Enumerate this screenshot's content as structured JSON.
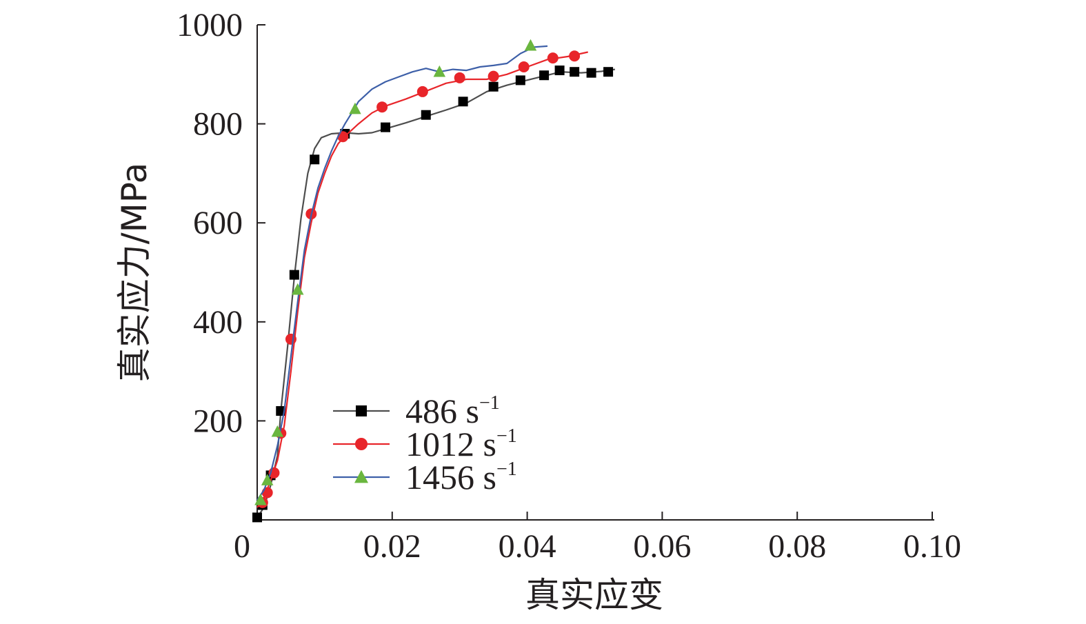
{
  "chart_data": {
    "type": "line",
    "title": "",
    "xlabel": "真实应变",
    "ylabel": "真实应力/MPa",
    "xlim": [
      0,
      0.1
    ],
    "ylim": [
      0,
      1000
    ],
    "xticks": [
      0,
      0.02,
      0.04,
      0.06,
      0.08,
      0.1
    ],
    "xtick_labels": [
      "0",
      "0.02",
      "0.04",
      "0.06",
      "0.08",
      "0.10"
    ],
    "yticks": [
      200,
      400,
      600,
      800,
      1000
    ],
    "ytick_labels": [
      "200",
      "400",
      "600",
      "800",
      "1000"
    ],
    "grid": false,
    "legend_position": "lower-left inside",
    "series": [
      {
        "name": "486 s",
        "sup": "−1",
        "color": "#4d4d4d",
        "marker": "square",
        "marker_color": "#000000",
        "line": [
          [
            0,
            5
          ],
          [
            0.001,
            25
          ],
          [
            0.002,
            70
          ],
          [
            0.003,
            130
          ],
          [
            0.0035,
            220
          ],
          [
            0.0045,
            350
          ],
          [
            0.0055,
            490
          ],
          [
            0.0065,
            610
          ],
          [
            0.0075,
            700
          ],
          [
            0.0085,
            750
          ],
          [
            0.0095,
            772
          ],
          [
            0.011,
            780
          ],
          [
            0.013,
            782
          ],
          [
            0.015,
            780
          ],
          [
            0.017,
            782
          ],
          [
            0.019,
            790
          ],
          [
            0.022,
            802
          ],
          [
            0.025,
            815
          ],
          [
            0.028,
            828
          ],
          [
            0.031,
            842
          ],
          [
            0.034,
            865
          ],
          [
            0.037,
            878
          ],
          [
            0.039,
            885
          ],
          [
            0.042,
            895
          ],
          [
            0.045,
            905
          ],
          [
            0.048,
            903
          ],
          [
            0.051,
            906
          ],
          [
            0.053,
            910
          ]
        ],
        "markers": [
          [
            0,
            5
          ],
          [
            0.0008,
            30
          ],
          [
            0.002,
            90
          ],
          [
            0.0035,
            220
          ],
          [
            0.0055,
            495
          ],
          [
            0.0085,
            728
          ],
          [
            0.013,
            780
          ],
          [
            0.019,
            793
          ],
          [
            0.025,
            818
          ],
          [
            0.0305,
            845
          ],
          [
            0.035,
            875
          ],
          [
            0.039,
            888
          ],
          [
            0.0425,
            898
          ],
          [
            0.0448,
            908
          ],
          [
            0.047,
            905
          ],
          [
            0.0495,
            903
          ],
          [
            0.052,
            905
          ]
        ]
      },
      {
        "name": "1012 s",
        "sup": "−1",
        "color": "#e8252a",
        "marker": "circle",
        "marker_color": "#e8252a",
        "line": [
          [
            0,
            25
          ],
          [
            0.001,
            45
          ],
          [
            0.002,
            80
          ],
          [
            0.003,
            120
          ],
          [
            0.004,
            190
          ],
          [
            0.005,
            300
          ],
          [
            0.006,
            420
          ],
          [
            0.007,
            530
          ],
          [
            0.008,
            600
          ],
          [
            0.009,
            660
          ],
          [
            0.01,
            700
          ],
          [
            0.011,
            735
          ],
          [
            0.012,
            760
          ],
          [
            0.013,
            775
          ],
          [
            0.015,
            800
          ],
          [
            0.017,
            822
          ],
          [
            0.019,
            836
          ],
          [
            0.022,
            850
          ],
          [
            0.025,
            866
          ],
          [
            0.028,
            882
          ],
          [
            0.031,
            890
          ],
          [
            0.034,
            890
          ],
          [
            0.037,
            900
          ],
          [
            0.04,
            915
          ],
          [
            0.043,
            930
          ],
          [
            0.046,
            936
          ],
          [
            0.049,
            945
          ]
        ],
        "markers": [
          [
            0.0008,
            35
          ],
          [
            0.0015,
            55
          ],
          [
            0.0025,
            95
          ],
          [
            0.0035,
            175
          ],
          [
            0.005,
            365
          ],
          [
            0.008,
            618
          ],
          [
            0.0127,
            774
          ],
          [
            0.0185,
            834
          ],
          [
            0.0245,
            865
          ],
          [
            0.03,
            893
          ],
          [
            0.035,
            896
          ],
          [
            0.0395,
            915
          ],
          [
            0.0438,
            933
          ],
          [
            0.047,
            937
          ]
        ]
      },
      {
        "name": "1456 s",
        "sup": "−1",
        "color": "#3d5fa8",
        "marker": "triangle",
        "marker_color": "#6ab63f",
        "line": [
          [
            0,
            40
          ],
          [
            0.001,
            60
          ],
          [
            0.002,
            95
          ],
          [
            0.003,
            150
          ],
          [
            0.004,
            220
          ],
          [
            0.005,
            330
          ],
          [
            0.006,
            440
          ],
          [
            0.007,
            545
          ],
          [
            0.008,
            615
          ],
          [
            0.009,
            670
          ],
          [
            0.01,
            710
          ],
          [
            0.011,
            745
          ],
          [
            0.012,
            775
          ],
          [
            0.013,
            800
          ],
          [
            0.014,
            822
          ],
          [
            0.015,
            845
          ],
          [
            0.017,
            870
          ],
          [
            0.019,
            885
          ],
          [
            0.021,
            895
          ],
          [
            0.023,
            905
          ],
          [
            0.025,
            912
          ],
          [
            0.027,
            905
          ],
          [
            0.029,
            910
          ],
          [
            0.031,
            908
          ],
          [
            0.033,
            915
          ],
          [
            0.035,
            918
          ],
          [
            0.037,
            922
          ],
          [
            0.039,
            942
          ],
          [
            0.041,
            955
          ],
          [
            0.043,
            957
          ]
        ],
        "markers": [
          [
            0.0005,
            40
          ],
          [
            0.0015,
            80
          ],
          [
            0.003,
            178
          ],
          [
            0.006,
            465
          ],
          [
            0.0145,
            830
          ],
          [
            0.027,
            905
          ],
          [
            0.0405,
            958
          ]
        ]
      }
    ]
  }
}
